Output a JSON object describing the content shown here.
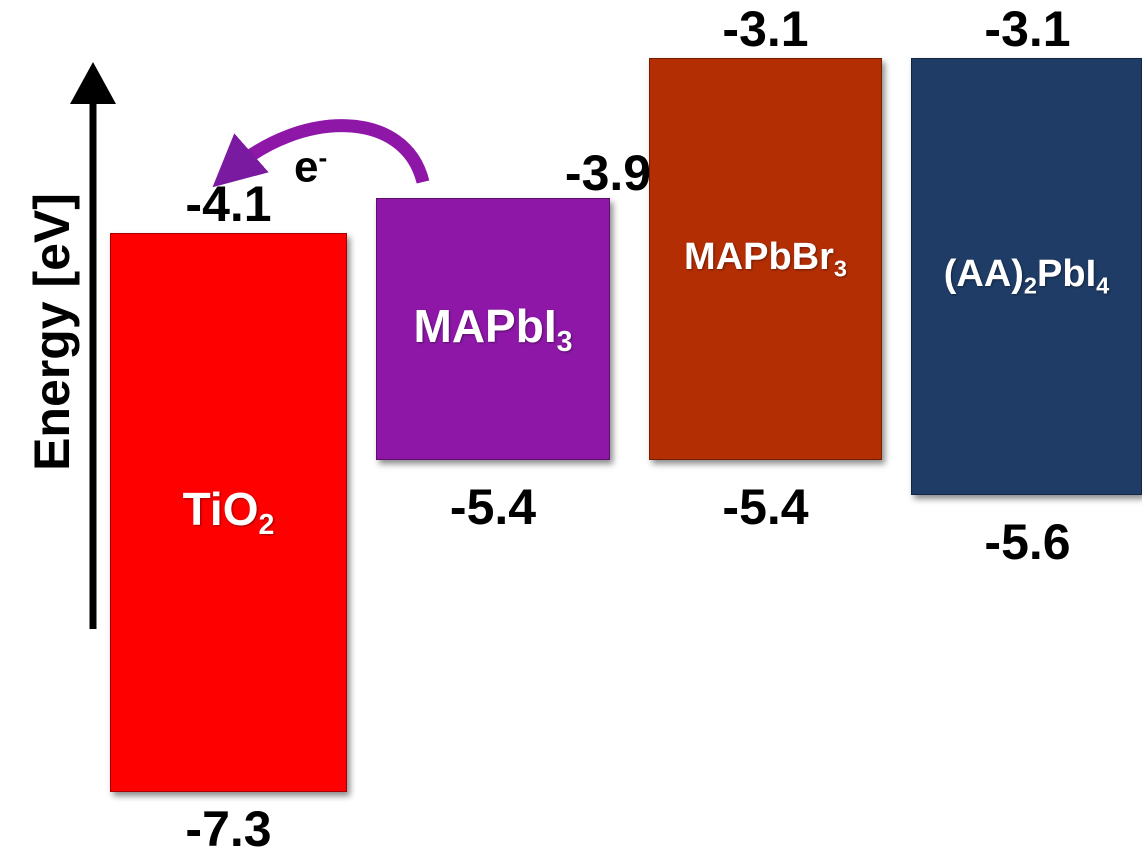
{
  "axis": {
    "label": "Energy [eV]"
  },
  "electron": {
    "label": "e",
    "charge": "-"
  },
  "materials": [
    {
      "id": "tio2",
      "name": "TiO",
      "sub": "2",
      "suffix": "",
      "cb": -4.1,
      "vb": -7.3,
      "cb_label": "-4.1",
      "vb_label": "-7.3",
      "color": "#ff0000"
    },
    {
      "id": "mapbi3",
      "name": "MAPbI",
      "sub": "3",
      "suffix": "",
      "cb": -3.9,
      "vb": -5.4,
      "cb_label": "-3.9",
      "vb_label": "-5.4",
      "color": "#8e17a8"
    },
    {
      "id": "mapbbr3",
      "name": "MAPbBr",
      "sub": "3",
      "suffix": "",
      "cb": -3.1,
      "vb": -5.4,
      "cb_label": "-3.1",
      "vb_label": "-5.4",
      "color": "#b42e04"
    },
    {
      "id": "aa2pbi4",
      "name": "(AA)",
      "sub": "2",
      "suffix": "PbI",
      "sub2": "4",
      "cb": -3.1,
      "vb": -5.6,
      "cb_label": "-3.1",
      "vb_label": "-5.6",
      "color": "#1f3c66"
    }
  ]
}
